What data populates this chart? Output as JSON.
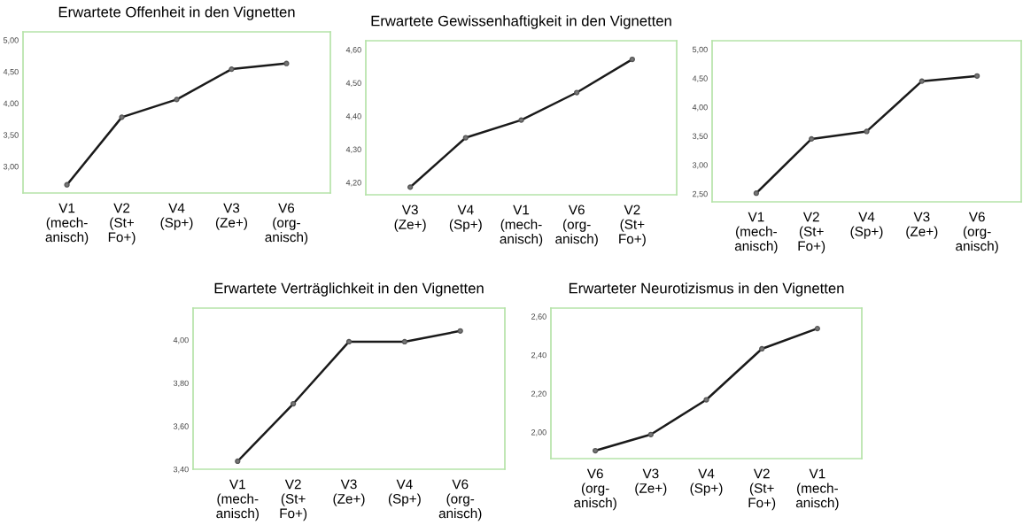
{
  "chart_data": [
    {
      "type": "line",
      "title": "Erwartete Offenheit in den Vignetten",
      "categories": [
        "V1\n(mech-\nanisch)",
        "V2\n(St+\nFo+)",
        "V4\n(Sp+)",
        "V3\n(Ze+)",
        "V6\n(org-\nanisch)"
      ],
      "series": [
        {
          "color": "#1a1a1a",
          "values": [
            2.71,
            3.78,
            4.06,
            4.54,
            4.63
          ]
        }
      ],
      "ylim": [
        2.58,
        5.13
      ],
      "yticks": [
        {
          "value": 3.0,
          "label": "3,00"
        },
        {
          "value": 3.5,
          "label": "3,50"
        },
        {
          "value": 4.0,
          "label": "4,00"
        },
        {
          "value": 4.5,
          "label": "4,50"
        },
        {
          "value": 5.0,
          "label": "5,00"
        }
      ],
      "marker": "circle",
      "line_style": "solid"
    },
    {
      "type": "line",
      "title": "Erwartete Gewissenhaftigkeit in den Vignetten",
      "categories": [
        "V3\n(Ze+)",
        "V4\n(Sp+)",
        "V1\n(mech-\nanisch)",
        "V6\n(org-\nanisch)",
        "V2\n(St+\nFo+)"
      ],
      "series": [
        {
          "color": "#1a1a1a",
          "values": [
            4.186,
            4.335,
            4.388,
            4.471,
            4.571
          ]
        }
      ],
      "ylim": [
        4.163,
        4.627
      ],
      "yticks": [
        {
          "value": 4.2,
          "label": "4,20"
        },
        {
          "value": 4.3,
          "label": "4,30"
        },
        {
          "value": 4.4,
          "label": "4,40"
        },
        {
          "value": 4.5,
          "label": "4,50"
        },
        {
          "value": 4.6,
          "label": "4,60"
        }
      ],
      "marker": "circle",
      "line_style": "solid"
    },
    {
      "type": "line",
      "categories": [
        "V1\n(mech-\nanisch)",
        "V2\n(St+\nFo+)",
        "V4\n(Sp+)",
        "V3\n(Ze+)",
        "V6\n(org-\nanisch)"
      ],
      "series": [
        {
          "color": "#1a1a1a",
          "values": [
            2.51,
            3.45,
            3.58,
            4.45,
            4.54
          ]
        }
      ],
      "ylim": [
        2.36,
        5.15
      ],
      "yticks": [
        {
          "value": 2.5,
          "label": "2,50"
        },
        {
          "value": 3.0,
          "label": "3,00"
        },
        {
          "value": 3.5,
          "label": "3,50"
        },
        {
          "value": 4.0,
          "label": "4,00"
        },
        {
          "value": 4.5,
          "label": "4,50"
        },
        {
          "value": 5.0,
          "label": "5,00"
        }
      ],
      "marker": "circle",
      "line_style": "solid"
    },
    {
      "type": "line",
      "title": "Erwartete Verträglichkeit in den Vignetten",
      "categories": [
        "V1\n(mech-\nanisch)",
        "V2\n(St+\nFo+)",
        "V3\n(Ze+)",
        "V4\n(Sp+)",
        "V6\n(org-\nanisch)"
      ],
      "series": [
        {
          "color": "#1a1a1a",
          "values": [
            3.437,
            3.704,
            3.992,
            3.992,
            4.042
          ]
        }
      ],
      "ylim": [
        3.4,
        4.148
      ],
      "yticks": [
        {
          "value": 3.4,
          "label": "3,40"
        },
        {
          "value": 3.6,
          "label": "3,60"
        },
        {
          "value": 3.8,
          "label": "3,80"
        },
        {
          "value": 4.0,
          "label": "4,00"
        }
      ],
      "marker": "circle",
      "line_style": "solid"
    },
    {
      "type": "line",
      "title": "Erwarteter Neurotizismus in den Vignetten",
      "categories": [
        "V6\n(org-\nanisch)",
        "V3\n(Ze+)",
        "V4\n(Sp+)",
        "V2\n(St+\nFo+)",
        "V1\n(mech-\nanisch)"
      ],
      "series": [
        {
          "color": "#1a1a1a",
          "values": [
            1.904,
            1.988,
            2.168,
            2.432,
            2.537
          ]
        }
      ],
      "ylim": [
        1.863,
        2.643
      ],
      "yticks": [
        {
          "value": 2.0,
          "label": "2,00"
        },
        {
          "value": 2.2,
          "label": "2,20"
        },
        {
          "value": 2.4,
          "label": "2,40"
        },
        {
          "value": 2.6,
          "label": "2,60"
        }
      ],
      "marker": "circle",
      "line_style": "solid"
    }
  ]
}
